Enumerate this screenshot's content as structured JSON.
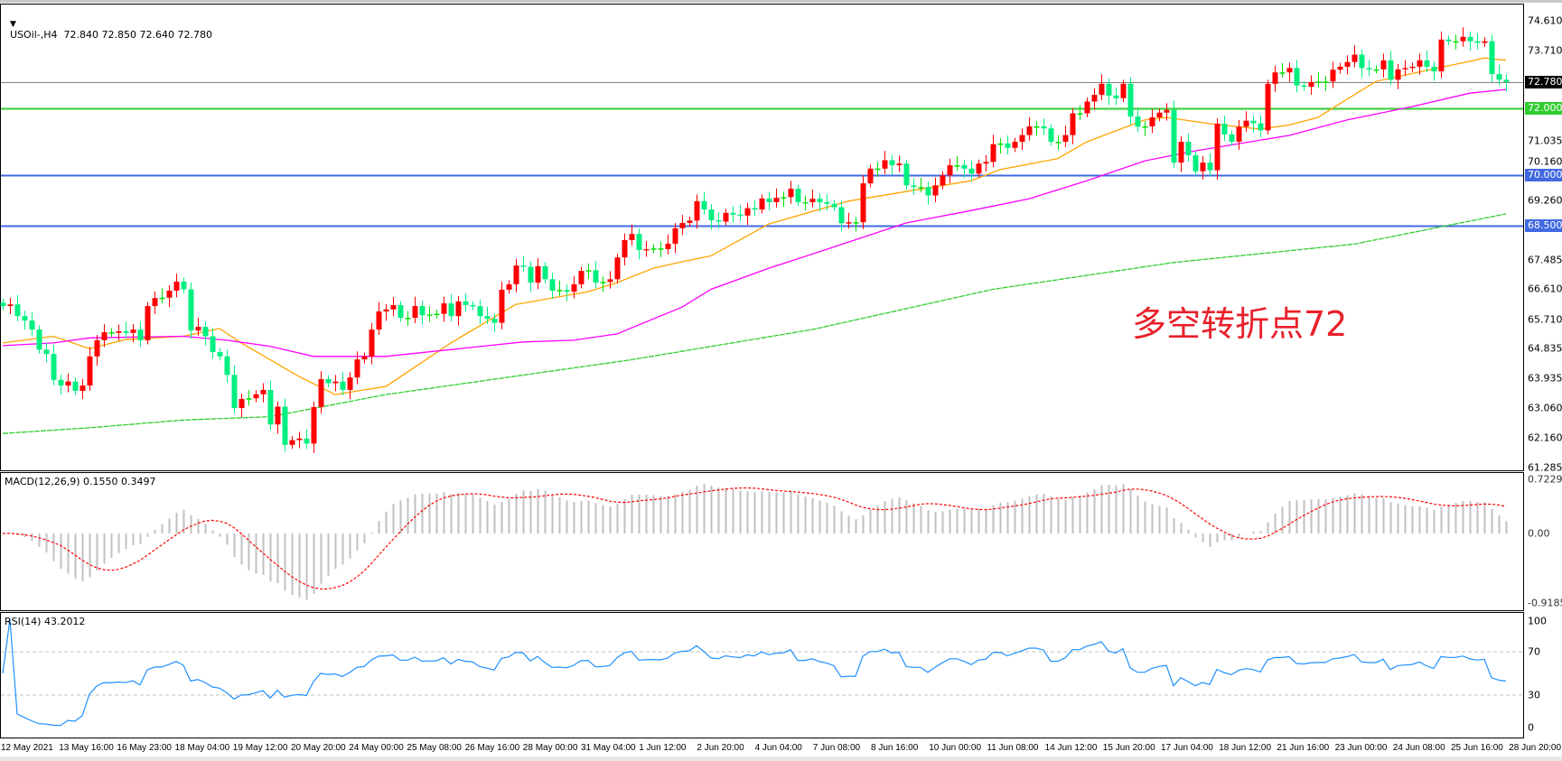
{
  "header": {
    "symbol_line": "USOil-,H4  72.840 72.850 72.640 72.780",
    "dropdown_icon": "triangle-down-icon"
  },
  "macd_label": "MACD(12,26,9) 0.1550 0.3497",
  "rsi_label": "RSI(14) 43.2012",
  "annotation": "多空转折点72",
  "colors": {
    "bull": "#ff0000",
    "bear": "#00f080",
    "ma_fast": "#ffa500",
    "ma_mid": "#ff00ff",
    "ma_slow": "#32cd32",
    "macd_hist": "#c0c0c0",
    "macd_signal": "#ff0000",
    "rsi": "#1e90ff",
    "annotation": "#e8202a"
  },
  "price_axis": [
    "74.610",
    "73.710",
    "71.035",
    "70.160",
    "69.260",
    "67.485",
    "66.610",
    "65.710",
    "64.835",
    "63.935",
    "63.060",
    "62.160",
    "61.285"
  ],
  "price_tags": [
    {
      "value": "72.780",
      "bg": "#000000",
      "fg": "#ffffff",
      "line": "#808080"
    },
    {
      "value": "72.000",
      "bg": "#32cd32",
      "fg": "#ffffff",
      "line": "#32cd32"
    },
    {
      "value": "70.000",
      "bg": "#4169e1",
      "fg": "#ffffff",
      "line": "#4169e1"
    },
    {
      "value": "68.500",
      "bg": "#4169e1",
      "fg": "#ffffff",
      "line": "#4169e1"
    }
  ],
  "macd_axis": [
    "0.7229",
    "0.00",
    "-0.9185"
  ],
  "rsi_axis": [
    "100",
    "70",
    "30",
    "0"
  ],
  "rsi_levels": [
    70,
    30
  ],
  "time_axis": [
    "12 May 2021",
    "13 May 16:00",
    "16 May 23:00",
    "18 May 04:00",
    "19 May 12:00",
    "20 May 20:00",
    "24 May 00:00",
    "25 May 08:00",
    "26 May 16:00",
    "28 May 00:00",
    "31 May 04:00",
    "1 Jun 12:00",
    "2 Jun 20:00",
    "4 Jun 04:00",
    "7 Jun 08:00",
    "8 Jun 16:00",
    "10 Jun 00:00",
    "11 Jun 08:00",
    "14 Jun 12:00",
    "15 Jun 20:00",
    "17 Jun 04:00",
    "18 Jun 12:00",
    "21 Jun 16:00",
    "23 Jun 00:00",
    "24 Jun 08:00",
    "25 Jun 16:00",
    "28 Jun 20:00"
  ],
  "chart_data": {
    "type": "candlestick",
    "symbol": "USOil-",
    "timeframe": "H4",
    "ylim": [
      61.285,
      74.61
    ],
    "first_open": 66.2,
    "closes": [
      66.1,
      66.15,
      65.8,
      65.67,
      65.4,
      64.8,
      64.67,
      63.9,
      63.73,
      63.85,
      63.57,
      63.73,
      64.6,
      65.08,
      65.32,
      65.3,
      65.35,
      65.3,
      65.4,
      65.08,
      66.1,
      66.34,
      66.35,
      66.56,
      66.83,
      66.6,
      65.37,
      65.48,
      65.2,
      64.73,
      64.6,
      64.05,
      63.06,
      63.33,
      63.35,
      63.47,
      63.6,
      62.57,
      63.1,
      61.96,
      62.1,
      62.15,
      62.0,
      63.09,
      63.92,
      63.8,
      63.85,
      63.6,
      63.97,
      64.51,
      64.6,
      65.4,
      65.94,
      66.0,
      66.13,
      65.75,
      65.75,
      66.1,
      65.83,
      65.85,
      65.87,
      66.18,
      65.8,
      66.24,
      66.13,
      66.1,
      65.8,
      65.72,
      65.6,
      66.59,
      66.75,
      67.31,
      67.27,
      66.8,
      67.29,
      66.9,
      66.56,
      66.58,
      66.53,
      66.75,
      67.15,
      67.17,
      66.8,
      66.82,
      66.9,
      67.55,
      68.07,
      68.25,
      67.77,
      67.8,
      67.82,
      67.8,
      67.96,
      68.42,
      68.58,
      68.65,
      69.23,
      68.98,
      68.66,
      68.62,
      68.88,
      68.83,
      68.8,
      69.02,
      68.98,
      69.31,
      69.2,
      69.33,
      69.35,
      69.6,
      69.2,
      69.2,
      69.3,
      69.2,
      69.15,
      69.05,
      68.57,
      68.6,
      68.6,
      69.76,
      70.2,
      70.2,
      70.45,
      70.3,
      70.35,
      69.7,
      69.65,
      69.65,
      69.4,
      69.7,
      70.0,
      70.3,
      70.3,
      70.2,
      70.05,
      70.35,
      70.4,
      70.93,
      70.95,
      70.82,
      71.0,
      71.2,
      71.46,
      71.46,
      71.4,
      71.0,
      71.0,
      71.2,
      71.85,
      71.85,
      72.2,
      72.4,
      72.73,
      72.38,
      72.3,
      72.73,
      71.75,
      71.45,
      71.46,
      71.73,
      71.87,
      71.95,
      70.38,
      71.0,
      70.6,
      70.12,
      70.38,
      70.15,
      71.54,
      71.22,
      71.0,
      71.45,
      71.63,
      71.55,
      71.34,
      72.73,
      73.07,
      73.07,
      73.2,
      72.68,
      72.64,
      72.78,
      72.8,
      72.8,
      73.15,
      73.24,
      73.38,
      73.6,
      73.2,
      73.16,
      73.16,
      73.43,
      72.85,
      73.16,
      73.2,
      73.24,
      73.43,
      73.24,
      73.1,
      74.05,
      74.0,
      74.0,
      74.13,
      74.0,
      73.95,
      74.0,
      73.02,
      72.85,
      72.78
    ],
    "moving_averages": [
      {
        "role": "fast",
        "points": [
          [
            0,
            65.0
          ],
          [
            7,
            65.2
          ],
          [
            12,
            64.83
          ],
          [
            17,
            65.1
          ],
          [
            25,
            65.2
          ],
          [
            30,
            65.43
          ],
          [
            33,
            65.0
          ],
          [
            41,
            64.0
          ],
          [
            46,
            63.46
          ],
          [
            50,
            63.6
          ],
          [
            53,
            63.7
          ],
          [
            62,
            65.0
          ],
          [
            71,
            66.15
          ],
          [
            81,
            66.53
          ],
          [
            85,
            66.8
          ],
          [
            90,
            67.23
          ],
          [
            94,
            67.42
          ],
          [
            98,
            67.6
          ],
          [
            106,
            68.55
          ],
          [
            117,
            69.23
          ],
          [
            134,
            69.84
          ],
          [
            138,
            70.17
          ],
          [
            146,
            70.5
          ],
          [
            150,
            71.0
          ],
          [
            158,
            71.65
          ],
          [
            161,
            71.73
          ],
          [
            167,
            71.54
          ],
          [
            174,
            71.38
          ],
          [
            178,
            71.5
          ],
          [
            182,
            71.73
          ],
          [
            186,
            72.27
          ],
          [
            190,
            72.8
          ],
          [
            197,
            73.13
          ],
          [
            203,
            73.4
          ],
          [
            205,
            73.5
          ],
          [
            208,
            73.43
          ]
        ]
      },
      {
        "role": "mid",
        "points": [
          [
            0,
            64.92
          ],
          [
            7,
            65.0
          ],
          [
            12,
            65.15
          ],
          [
            25,
            65.2
          ],
          [
            31,
            65.08
          ],
          [
            37,
            64.9
          ],
          [
            43,
            64.6
          ],
          [
            53,
            64.6
          ],
          [
            72,
            65.03
          ],
          [
            79,
            65.08
          ],
          [
            85,
            65.27
          ],
          [
            94,
            66.07
          ],
          [
            98,
            66.6
          ],
          [
            106,
            67.23
          ],
          [
            113,
            67.72
          ],
          [
            125,
            68.58
          ],
          [
            134,
            68.95
          ],
          [
            142,
            69.3
          ],
          [
            150,
            69.84
          ],
          [
            158,
            70.43
          ],
          [
            165,
            70.73
          ],
          [
            178,
            71.19
          ],
          [
            186,
            71.65
          ],
          [
            195,
            72.05
          ],
          [
            203,
            72.45
          ],
          [
            208,
            72.56
          ]
        ]
      },
      {
        "role": "slow",
        "points": [
          [
            0,
            62.3
          ],
          [
            12,
            62.47
          ],
          [
            25,
            62.7
          ],
          [
            37,
            62.8
          ],
          [
            53,
            63.46
          ],
          [
            87,
            64.5
          ],
          [
            112,
            65.4
          ],
          [
            137,
            66.6
          ],
          [
            162,
            67.4
          ],
          [
            187,
            67.95
          ],
          [
            208,
            68.85
          ]
        ]
      }
    ],
    "horizontal_levels": [
      72.78,
      72.0,
      70.0,
      68.5
    ],
    "indicators": [
      "MACD(12,26,9)",
      "RSI(14)"
    ]
  }
}
